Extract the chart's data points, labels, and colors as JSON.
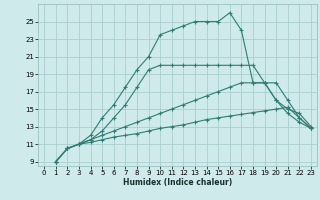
{
  "xlabel": "Humidex (Indice chaleur)",
  "bg_color": "#ceeaea",
  "grid_color": "#aacece",
  "line_color": "#2e7d72",
  "xlim": [
    -0.5,
    23.5
  ],
  "ylim": [
    8.5,
    27
  ],
  "xticks": [
    0,
    1,
    2,
    3,
    4,
    5,
    6,
    7,
    8,
    9,
    10,
    11,
    12,
    13,
    14,
    15,
    16,
    17,
    18,
    19,
    20,
    21,
    22,
    23
  ],
  "yticks": [
    9,
    11,
    13,
    15,
    17,
    19,
    21,
    23,
    25
  ],
  "series": [
    {
      "x": [
        1,
        2,
        3,
        4,
        5,
        6,
        7,
        8,
        9,
        10,
        11,
        12,
        13,
        14,
        15,
        16,
        17,
        18,
        19,
        20,
        21,
        22,
        23
      ],
      "y": [
        9,
        10.5,
        11,
        11.2,
        11.5,
        11.8,
        12,
        12.2,
        12.5,
        12.8,
        13.0,
        13.2,
        13.5,
        13.8,
        14.0,
        14.2,
        14.4,
        14.6,
        14.8,
        15.0,
        15.2,
        14.0,
        12.8
      ]
    },
    {
      "x": [
        1,
        2,
        3,
        4,
        5,
        6,
        7,
        8,
        9,
        10,
        11,
        12,
        13,
        14,
        15,
        16,
        17,
        18,
        19,
        20,
        21,
        22,
        23
      ],
      "y": [
        9,
        10.5,
        11,
        11.5,
        12,
        12.5,
        13,
        13.5,
        14,
        14.5,
        15,
        15.5,
        16,
        16.5,
        17,
        17.5,
        18,
        18,
        18,
        18,
        16,
        14,
        12.8
      ]
    },
    {
      "x": [
        1,
        2,
        3,
        4,
        5,
        6,
        7,
        8,
        9,
        10,
        11,
        12,
        13,
        14,
        15,
        16,
        17,
        18,
        19,
        20,
        21,
        22,
        23
      ],
      "y": [
        9,
        10.5,
        11,
        11.5,
        12.5,
        14,
        15.5,
        17.5,
        19.5,
        20,
        20,
        20,
        20,
        20,
        20,
        20,
        20,
        20,
        18,
        16,
        15,
        14.5,
        13
      ]
    },
    {
      "x": [
        1,
        2,
        3,
        4,
        5,
        6,
        7,
        8,
        9,
        10,
        11,
        12,
        13,
        14,
        15,
        16,
        17,
        18,
        19,
        20,
        21,
        22,
        23
      ],
      "y": [
        9,
        10.5,
        11,
        12,
        14,
        15.5,
        17.5,
        19.5,
        21,
        23.5,
        24,
        24.5,
        25,
        25,
        25,
        26,
        24,
        18,
        18,
        16,
        14.5,
        13.5,
        12.8
      ]
    }
  ]
}
